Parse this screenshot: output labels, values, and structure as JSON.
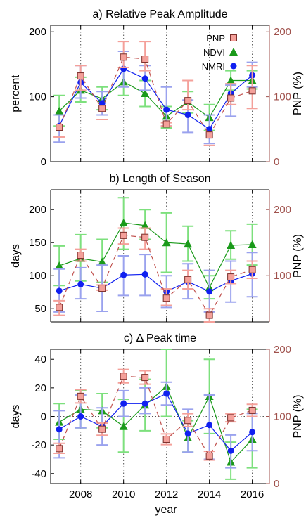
{
  "colors": {
    "pnp": "#c0504d",
    "pnp_fill": "#f4a09a",
    "pnp_axis": "#a0524d",
    "ndvi": "#1a9a1a",
    "ndvi_err": "#7de07d",
    "nmri": "#1020f0",
    "nmri_err": "#9aa2ee",
    "grid": "#555555"
  },
  "xlabel": "year",
  "chart_data": [
    {
      "type": "line",
      "title": "a)  Relative Peak Amplitude",
      "ylabel": "percent",
      "ylabel_right": "PNP (%)",
      "ylim": [
        0,
        210
      ],
      "yticks": [
        0,
        100,
        200
      ],
      "ylim_right": [
        0,
        210
      ],
      "yticks_right": [
        0,
        100,
        200
      ],
      "zero_line": false,
      "legend": {
        "placement": "top-right",
        "entries": [
          "PNP",
          "NDVI",
          "NMRI"
        ]
      },
      "x": [
        2007,
        2008,
        2009,
        2010,
        2011,
        2012,
        2013,
        2014,
        2015,
        2016
      ],
      "xticks": [
        2008,
        2010,
        2012,
        2014,
        2016
      ],
      "series": [
        {
          "name": "NDVI",
          "axis": "left",
          "values": [
            78,
            110,
            97,
            123,
            105,
            70,
            92,
            68,
            125,
            125
          ],
          "err_low": [
            55,
            92,
            80,
            102,
            85,
            52,
            75,
            48,
            110,
            112
          ],
          "err_high": [
            102,
            130,
            115,
            145,
            125,
            85,
            108,
            88,
            140,
            140
          ]
        },
        {
          "name": "NMRI",
          "axis": "left",
          "values": [
            55,
            122,
            90,
            143,
            128,
            80,
            72,
            50,
            105,
            133
          ],
          "err_low": [
            30,
            98,
            72,
            115,
            110,
            55,
            45,
            28,
            70,
            115
          ],
          "err_high": [
            72,
            148,
            108,
            170,
            148,
            115,
            95,
            72,
            118,
            153
          ]
        },
        {
          "name": "PNP",
          "axis": "right",
          "values": [
            53,
            132,
            82,
            161,
            158,
            58,
            94,
            41,
            98,
            109
          ],
          "err_low": [
            38,
            110,
            65,
            145,
            140,
            55,
            80,
            25,
            88,
            82
          ],
          "err_high": [
            38,
            148,
            65,
            185,
            185,
            60,
            125,
            25,
            120,
            148
          ]
        }
      ]
    },
    {
      "type": "line",
      "title": "b)  Length of Season",
      "ylabel": "days",
      "ylabel_right": "PNP (%)",
      "ylim": [
        30,
        230
      ],
      "yticks": [
        50,
        100,
        150,
        200
      ],
      "ylim_right": [
        30,
        230
      ],
      "yticks_right": [
        100,
        200
      ],
      "zero_line": false,
      "x": [
        2007,
        2008,
        2009,
        2010,
        2011,
        2012,
        2013,
        2014,
        2015,
        2016
      ],
      "xticks": [
        2008,
        2010,
        2012,
        2014,
        2016
      ],
      "series": [
        {
          "name": "NDVI",
          "axis": "left",
          "values": [
            115,
            126,
            121,
            180,
            176,
            150,
            148,
            82,
            146,
            147
          ],
          "err_low": [
            85,
            92,
            90,
            140,
            155,
            105,
            122,
            65,
            125,
            116
          ],
          "err_high": [
            145,
            162,
            155,
            218,
            200,
            195,
            175,
            100,
            168,
            178
          ]
        },
        {
          "name": "NMRI",
          "axis": "left",
          "values": [
            77,
            87,
            81,
            101,
            102,
            76,
            91,
            76,
            92,
            103
          ],
          "err_low": [
            45,
            65,
            46,
            70,
            70,
            52,
            65,
            45,
            60,
            68
          ],
          "err_high": [
            110,
            112,
            116,
            130,
            132,
            100,
            118,
            108,
            122,
            135
          ]
        },
        {
          "name": "PNP",
          "axis": "right",
          "values": [
            52,
            131,
            81,
            161,
            158,
            66,
            94,
            40,
            98,
            109
          ],
          "err_low": [
            40,
            122,
            78,
            148,
            140,
            55,
            80,
            30,
            88,
            96
          ],
          "err_high": [
            62,
            140,
            86,
            172,
            172,
            80,
            108,
            50,
            108,
            122
          ]
        }
      ]
    },
    {
      "type": "line",
      "title": "c)  Δ Peak time",
      "ylabel": "days",
      "ylabel_right": "PNP (%)",
      "ylim": [
        -47,
        47
      ],
      "yticks": [
        -40,
        -20,
        0,
        20,
        40
      ],
      "ylim_right": [
        0,
        200
      ],
      "yticks_right": [
        0,
        100,
        200
      ],
      "zero_line": true,
      "x": [
        2007,
        2008,
        2009,
        2010,
        2011,
        2012,
        2013,
        2014,
        2015,
        2016
      ],
      "xticks": [
        2008,
        2010,
        2012,
        2014,
        2016
      ],
      "series": [
        {
          "name": "NDVI",
          "axis": "left",
          "values": [
            -4,
            5,
            4,
            -7,
            8,
            21,
            -15,
            14,
            -32,
            -16
          ],
          "err_low": [
            -16,
            -8,
            -8,
            -25,
            -10,
            0,
            -25,
            -12,
            -44,
            -36
          ],
          "err_high": [
            9,
            18,
            16,
            12,
            26,
            47,
            -3,
            40,
            -18,
            5
          ]
        },
        {
          "name": "NMRI",
          "axis": "left",
          "values": [
            -9,
            0,
            -7,
            9,
            9,
            16,
            -12,
            -6,
            -24,
            -11
          ],
          "err_low": [
            -29,
            -8,
            -20,
            0,
            2,
            8,
            -25,
            -30,
            -36,
            -24
          ],
          "err_high": [
            4,
            15,
            6,
            18,
            20,
            24,
            5,
            15,
            -13,
            2
          ]
        },
        {
          "name": "PNP",
          "axis": "right",
          "values": [
            52,
            130,
            81,
            160,
            158,
            66,
            94,
            41,
            98,
            109
          ],
          "err_low": [
            45,
            120,
            72,
            150,
            148,
            58,
            85,
            35,
            92,
            100
          ],
          "err_high": [
            60,
            140,
            90,
            170,
            168,
            74,
            104,
            48,
            104,
            118
          ]
        }
      ]
    }
  ]
}
